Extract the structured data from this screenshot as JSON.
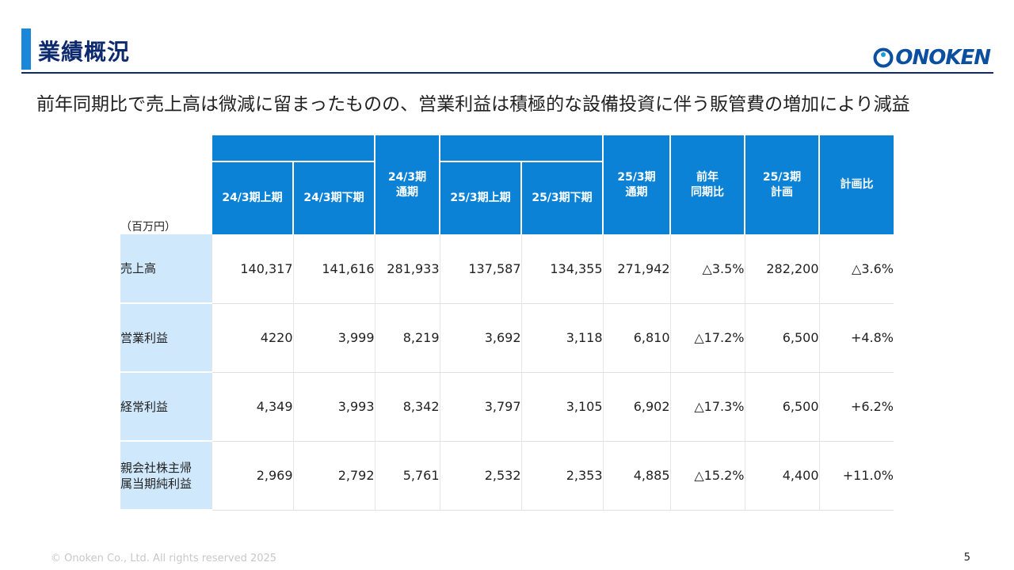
{
  "header": {
    "title": "業績概況",
    "logo_text": "ONOKEN",
    "logo_color": "#0b4fa0"
  },
  "subtitle": "前年同期比で売上高は微減に留まったものの、営業利益は積極的な設備投資に伴う販管費の増加により減益",
  "table": {
    "unit_label": "（百万円）",
    "columns": [
      "24/3期上期",
      "24/3期下期",
      "24/3期\n通期",
      "25/3期上期",
      "25/3期下期",
      "25/3期\n通期",
      "前年\n同期比",
      "25/3期\n計画",
      "計画比"
    ],
    "rows": [
      {
        "label": "売上高",
        "values": [
          "140,317",
          "141,616",
          "281,933",
          "137,587",
          "134,355",
          "271,942",
          "△3.5%",
          "282,200",
          "△3.6%"
        ]
      },
      {
        "label": "営業利益",
        "values": [
          "4220",
          "3,999",
          "8,219",
          "3,692",
          "3,118",
          "6,810",
          "△17.2%",
          "6,500",
          "+4.8%"
        ]
      },
      {
        "label": "経常利益",
        "values": [
          "4,349",
          "3,993",
          "8,342",
          "3,797",
          "3,105",
          "6,902",
          "△17.3%",
          "6,500",
          "+6.2%"
        ]
      },
      {
        "label": "親会社株主帰\n属当期純利益",
        "values": [
          "2,969",
          "2,792",
          "5,761",
          "2,532",
          "2,353",
          "4,885",
          "△15.2%",
          "4,400",
          "+11.0%"
        ]
      }
    ]
  },
  "footer": {
    "copyright": "© Onoken Co., Ltd. All rights reserved 2025",
    "page_number": "5"
  },
  "colors": {
    "header_blue": "#0b82d6",
    "label_bg": "#cfe8fb",
    "title_navy": "#0d2a6e"
  }
}
